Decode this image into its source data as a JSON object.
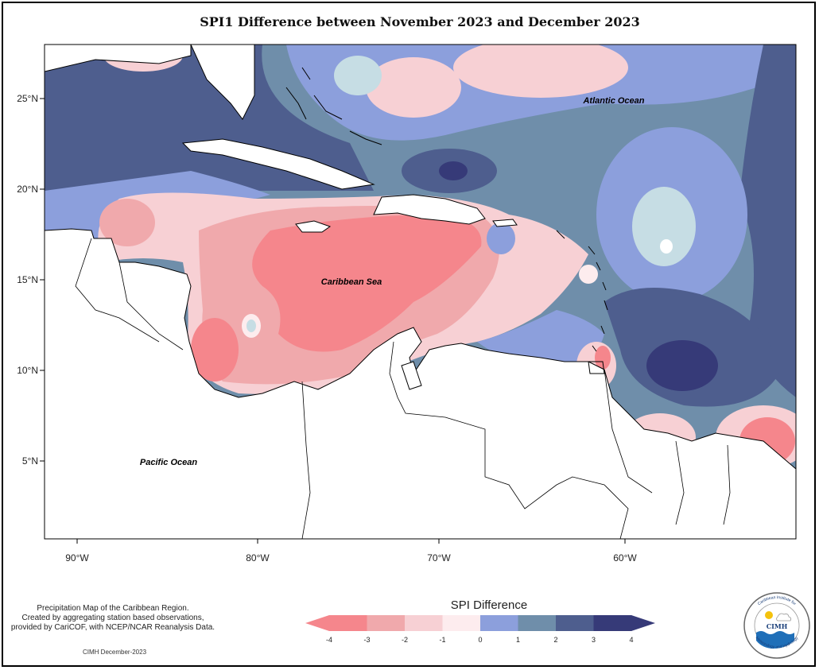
{
  "title": "SPI1 Difference between November 2023 and December 2023",
  "labels": {
    "atlantic": "Atlantic Ocean",
    "caribbean": "Caribbean Sea",
    "pacific": "Pacific Ocean"
  },
  "axes": {
    "lat_ticks": [
      "25°N",
      "20°N",
      "15°N",
      "10°N",
      "5°N"
    ],
    "lon_ticks": [
      "90°W",
      "80°W",
      "70°W",
      "60°W"
    ]
  },
  "legend": {
    "title": "SPI Difference",
    "ticks": [
      "-4",
      "-3",
      "-2",
      "-1",
      "0",
      "1",
      "2",
      "3",
      "4"
    ],
    "colors": [
      "#f5868c",
      "#f0a9ac",
      "#f7d0d4",
      "#fdecee",
      "#c6dde4",
      "#8c9fdc",
      "#6f8eaa",
      "#4e5e8e",
      "#363a78"
    ]
  },
  "notes": {
    "line1": "Precipitation Map of the Caribbean Region.",
    "line2": "Created by aggregating station based observations,",
    "line3": "provided by CariCOF, with NCEP/NCAR Reanalysis Data."
  },
  "credit": "CIMH December-2023",
  "logo": {
    "name": "CIMH",
    "ring_top": "Caribbean Institute for",
    "ring_bottom": "Meteorology and Hydrology"
  }
}
